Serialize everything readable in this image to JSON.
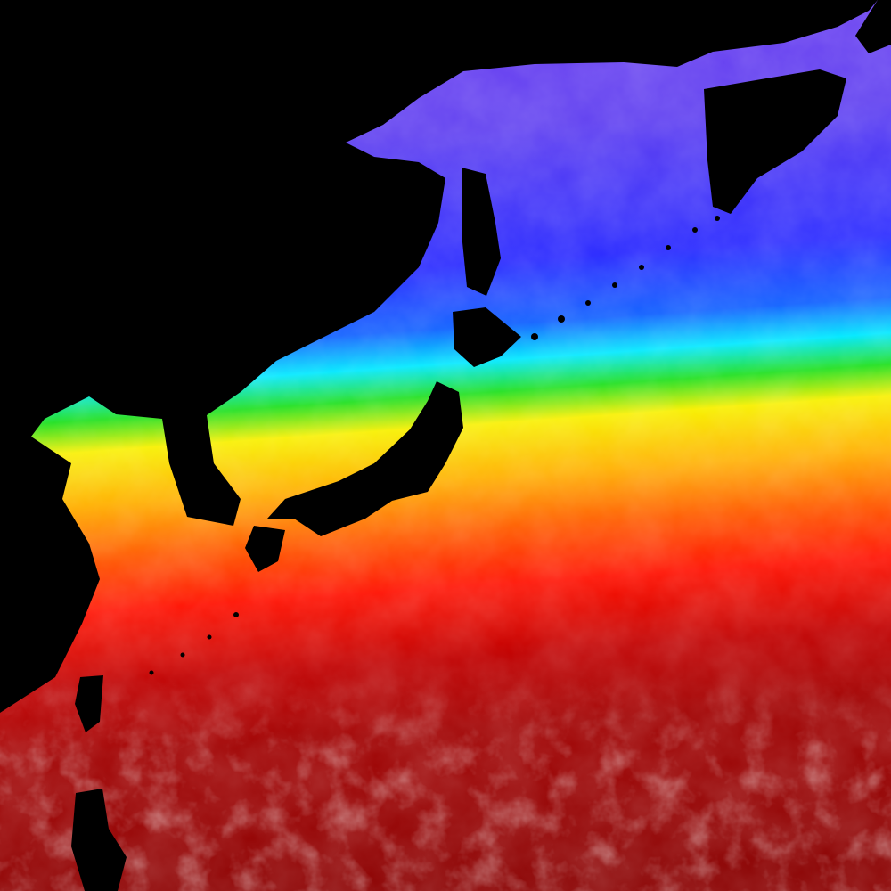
{
  "colors": {
    "land": "#000000",
    "band_purple": "#6a3cf0",
    "band_blue": "#2a2aff",
    "band_cyan": "#00e8ff",
    "band_green": "#20e020",
    "band_yellow": "#f8f000",
    "band_orange": "#ff9a00",
    "band_red": "#ff1000",
    "band_darkred": "#a00000",
    "band_deepred": "#8a0000",
    "cloud": "#c8a0a0"
  },
  "map": {
    "icon": "sea-surface-map-icon"
  }
}
